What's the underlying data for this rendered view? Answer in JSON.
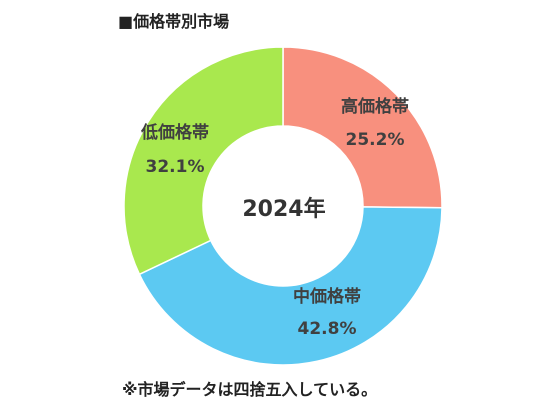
{
  "chart_data": {
    "type": "pie",
    "title": "■価格帯別市場",
    "center_label": "2024年",
    "slices": [
      {
        "label": "高価格帯",
        "value": 25.2,
        "value_label": "25.2%",
        "color": "#f8907e"
      },
      {
        "label": "中価格帯",
        "value": 42.8,
        "value_label": "42.8%",
        "color": "#5cc9f2"
      },
      {
        "label": "低価格帯",
        "value": 32.1,
        "value_label": "32.1%",
        "color": "#a9e84e"
      }
    ]
  },
  "footnote": "※市場データは四捨五入している。"
}
